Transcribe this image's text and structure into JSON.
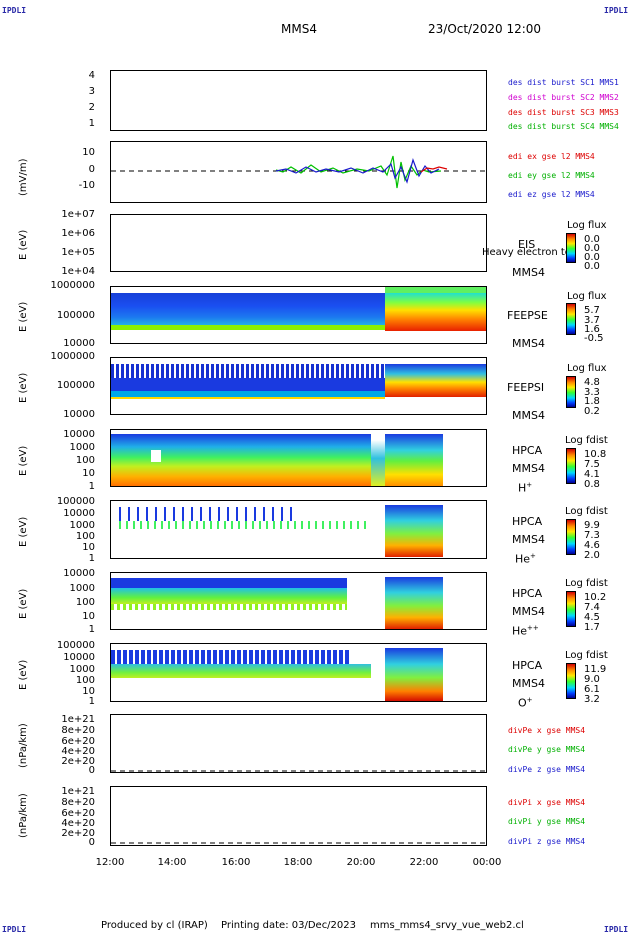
{
  "header": {
    "corner_label": "IPDLI",
    "spacecraft": "MMS4",
    "datetime": "23/Oct/2020 12:00"
  },
  "footer": {
    "produced_by": "Produced by cl (IRAP)",
    "printing_date": "Printing date: 03/Dec/2023",
    "script": "mms_mms4_srvy_vue_web2.cl"
  },
  "x_axis": {
    "ticks": [
      "12:00",
      "14:00",
      "16:00",
      "18:00",
      "20:00",
      "22:00",
      "00:00"
    ]
  },
  "panels": {
    "des": {
      "yticks": [
        "4",
        "3",
        "2",
        "1"
      ],
      "legend": [
        {
          "text": "des dist burst SC1 MMS1",
          "color": "#1a1acc"
        },
        {
          "text": "des dist burst SC2 MMS2",
          "color": "#d000d0"
        },
        {
          "text": "des dist burst SC3 MMS3",
          "color": "#dd0000"
        },
        {
          "text": "des dist burst SC4 MMS4",
          "color": "#00b000"
        }
      ]
    },
    "edi": {
      "ylabel": "(mV/m)",
      "yticks": [
        "10",
        "0",
        "-10"
      ],
      "legend": [
        {
          "text": "edi ex gse l2 MMS4",
          "color": "#dd0000"
        },
        {
          "text": "edi ey gse l2 MMS4",
          "color": "#00b000"
        },
        {
          "text": "edi ez gse l2 MMS4",
          "color": "#1a1acc"
        }
      ]
    },
    "eis": {
      "ylabel": "E (eV)",
      "yticks": [
        "1e+07",
        "1e+06",
        "1e+05",
        "1e+04"
      ],
      "instrument": "EIS",
      "overlay": "Heavy electron to",
      "sc": "MMS4",
      "cbar_title": "Log flux",
      "cbar_values": [
        "0.0",
        "0.0",
        "0.0",
        "0.0"
      ]
    },
    "feepse": {
      "ylabel": "E (eV)",
      "yticks": [
        "1000000",
        "100000",
        "10000"
      ],
      "instrument": "FEEPSE",
      "sc": "MMS4",
      "cbar_title": "Log flux",
      "cbar_values": [
        "5.7",
        "3.7",
        "1.6",
        "-0.5"
      ]
    },
    "feepsi": {
      "ylabel": "E (eV)",
      "yticks": [
        "1000000",
        "100000",
        "10000"
      ],
      "instrument": "FEEPSI",
      "sc": "MMS4",
      "cbar_title": "Log flux",
      "cbar_values": [
        "4.8",
        "3.3",
        "1.8",
        "0.2"
      ]
    },
    "hpca_h": {
      "ylabel": "E (eV)",
      "yticks": [
        "10000",
        "1000",
        "100",
        "10",
        "1"
      ],
      "instrument": "HPCA",
      "sc": "MMS4",
      "species": "H",
      "charge": "+",
      "cbar_title": "Log fdist",
      "cbar_values": [
        "10.8",
        "7.5",
        "4.1",
        "0.8"
      ]
    },
    "hpca_he": {
      "ylabel": "E (eV)",
      "yticks": [
        "100000",
        "10000",
        "1000",
        "100",
        "10",
        "1"
      ],
      "instrument": "HPCA",
      "sc": "MMS4",
      "species": "He",
      "charge": "+",
      "cbar_title": "Log fdist",
      "cbar_values": [
        "9.9",
        "7.3",
        "4.6",
        "2.0"
      ]
    },
    "hpca_hepp": {
      "ylabel": "E (eV)",
      "yticks": [
        "10000",
        "1000",
        "100",
        "10",
        "1"
      ],
      "instrument": "HPCA",
      "sc": "MMS4",
      "species": "He",
      "charge": "++",
      "cbar_title": "Log fdist",
      "cbar_values": [
        "10.2",
        "7.4",
        "4.5",
        "1.7"
      ]
    },
    "hpca_o": {
      "ylabel": "E (eV)",
      "yticks": [
        "100000",
        "10000",
        "1000",
        "100",
        "10",
        "1"
      ],
      "instrument": "HPCA",
      "sc": "MMS4",
      "species": "O",
      "charge": "+",
      "cbar_title": "Log fdist",
      "cbar_values": [
        "11.9",
        "9.0",
        "6.1",
        "3.2"
      ]
    },
    "divpe": {
      "ylabel": "(nPa/km)",
      "yticks": [
        "1e+21",
        "8e+20",
        "6e+20",
        "4e+20",
        "2e+20",
        "0"
      ],
      "legend": [
        {
          "text": "divPe x gse MMS4",
          "color": "#dd0000"
        },
        {
          "text": "divPe y gse MMS4",
          "color": "#00b000"
        },
        {
          "text": "divPe z gse MMS4",
          "color": "#1a1acc"
        }
      ]
    },
    "divpi": {
      "ylabel": "(nPa/km)",
      "yticks": [
        "1e+21",
        "8e+20",
        "6e+20",
        "4e+20",
        "2e+20",
        "0"
      ],
      "legend": [
        {
          "text": "divPi x gse MMS4",
          "color": "#dd0000"
        },
        {
          "text": "divPi y gse MMS4",
          "color": "#00b000"
        },
        {
          "text": "divPi z gse MMS4",
          "color": "#1a1acc"
        }
      ]
    }
  },
  "chart_data": {
    "type": "heatmap",
    "title": "MMS4 23/Oct/2020 12:00",
    "x_range": [
      "12:00",
      "00:00"
    ],
    "colormap": [
      "#000090",
      "#0040ff",
      "#00d8ff",
      "#33ff33",
      "#ffe800",
      "#ff8a00",
      "#d00000"
    ]
  }
}
